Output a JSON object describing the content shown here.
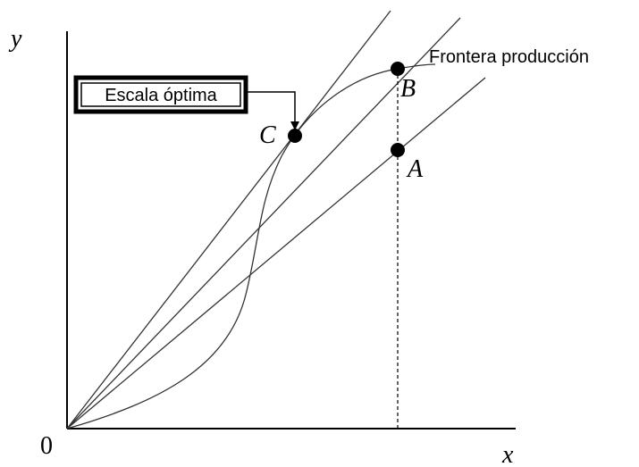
{
  "axes": {
    "y": "y",
    "x": "x",
    "origin": "0"
  },
  "points": [
    {
      "label": "A"
    },
    {
      "label": "B"
    },
    {
      "label": "C"
    }
  ],
  "curve_label": "Frontera producción",
  "callout": "Escala óptima"
}
